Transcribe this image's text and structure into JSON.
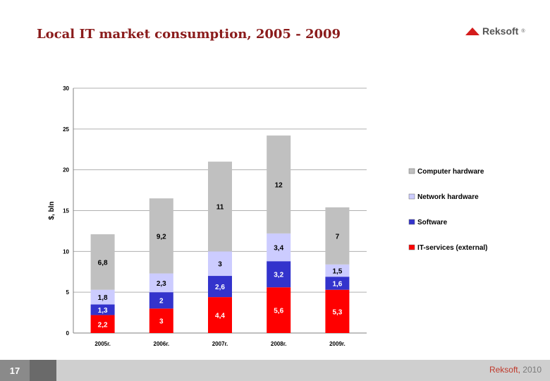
{
  "header": {
    "title": "Local IT market consumption, 2005 - 2009",
    "logo_text": "Reksoft",
    "logo_mark": "®"
  },
  "footer": {
    "page_number": "17",
    "brand": "Reksoft,",
    "year": " 2010"
  },
  "chart_data": {
    "type": "bar",
    "stacked": true,
    "title": "",
    "ylabel": "$, bln",
    "xlabel": "",
    "ylim": [
      0,
      30
    ],
    "yticks": [
      0,
      5,
      10,
      15,
      20,
      25,
      30
    ],
    "grid": true,
    "legend_position": "right",
    "categories": [
      "2005г.",
      "2006г.",
      "2007г.",
      "2008г.",
      "2009г."
    ],
    "series": [
      {
        "name": "IT-services (external)",
        "color": "#ff0000",
        "values": [
          2.2,
          3,
          4.4,
          5.6,
          5.3
        ],
        "labels": [
          "2,2",
          "3",
          "4,4",
          "5,6",
          "5,3"
        ],
        "label_color": "#ffffff"
      },
      {
        "name": "Software",
        "color": "#3333cc",
        "values": [
          1.3,
          2,
          2.6,
          3.2,
          1.6
        ],
        "labels": [
          "1,3",
          "2",
          "2,6",
          "3,2",
          "1,6"
        ],
        "label_color": "#ffffff"
      },
      {
        "name": "Network hardware",
        "color": "#ccccff",
        "values": [
          1.8,
          2.3,
          3,
          3.4,
          1.5
        ],
        "labels": [
          "1,8",
          "2,3",
          "3",
          "3,4",
          "1,5"
        ],
        "label_color": "#000000"
      },
      {
        "name": "Computer hardware",
        "color": "#c0c0c0",
        "values": [
          6.8,
          9.2,
          11,
          12,
          7
        ],
        "labels": [
          "6,8",
          "9,2",
          "11",
          "12",
          "7"
        ],
        "label_color": "#000000"
      }
    ],
    "legend_order": [
      "Computer hardware",
      "Network hardware",
      "Software",
      "IT-services (external)"
    ]
  }
}
